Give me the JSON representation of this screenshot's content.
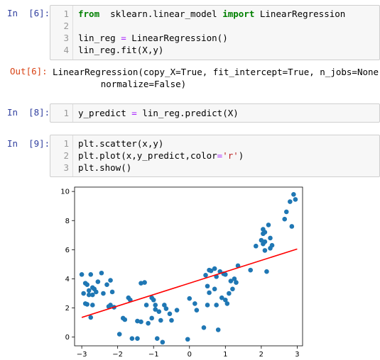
{
  "cells": [
    {
      "prompt": "In  [6]:",
      "lines": [
        {
          "n": "1",
          "parts": [
            [
              "kw",
              "from"
            ],
            [
              "",
              "  sklearn.linear_model "
            ],
            [
              "kw",
              "import"
            ],
            [
              "",
              " LinearRegression"
            ]
          ]
        },
        {
          "n": "2",
          "parts": []
        },
        {
          "n": "3",
          "parts": [
            [
              "",
              "lin_reg "
            ],
            [
              "op",
              "="
            ],
            [
              "",
              " LinearRegression()"
            ]
          ]
        },
        {
          "n": "4",
          "parts": [
            [
              "",
              "lin_reg.fit(X,y)"
            ]
          ]
        }
      ]
    },
    {
      "prompt": "In  [8]:",
      "lines": [
        {
          "n": "1",
          "parts": [
            [
              "",
              "y_predict "
            ],
            [
              "op",
              "="
            ],
            [
              "",
              " lin_reg.predict(X)"
            ]
          ]
        }
      ]
    },
    {
      "prompt": "In  [9]:",
      "lines": [
        {
          "n": "1",
          "parts": [
            [
              "",
              "plt.scatter(x,y)"
            ]
          ]
        },
        {
          "n": "2",
          "parts": [
            [
              "",
              "plt.plot(x,y_predict,color"
            ],
            [
              "op",
              "="
            ],
            [
              "str",
              "'r'"
            ],
            [
              "",
              ")"
            ]
          ]
        },
        {
          "n": "3",
          "parts": [
            [
              "",
              "plt.show()"
            ]
          ]
        }
      ]
    }
  ],
  "output6": {
    "prompt": "Out[6]:",
    "line1": "LinearRegression(copy_X=True, fit_intercept=True, n_jobs=None,",
    "line2": "         normalize=False)"
  },
  "chart_data": {
    "type": "scatter",
    "title": "",
    "xlabel": "",
    "ylabel": "",
    "xlim": [
      -3.2,
      3.15
    ],
    "ylim": [
      -0.6,
      10.3
    ],
    "xticks": [
      "−3",
      "−2",
      "−1",
      "0",
      "1",
      "2",
      "3"
    ],
    "yticks": [
      "0",
      "2",
      "4",
      "6",
      "8",
      "10"
    ],
    "grid": false,
    "point_color": "#1f77b4",
    "line_color": "#ff0000",
    "points": [
      [
        -3.0,
        4.3
      ],
      [
        -2.9,
        3.7
      ],
      [
        -2.95,
        3.0
      ],
      [
        -2.85,
        3.6
      ],
      [
        -2.8,
        3.2
      ],
      [
        -2.75,
        4.3
      ],
      [
        -2.7,
        3.4
      ],
      [
        -2.65,
        3.3
      ],
      [
        -2.6,
        3.1
      ],
      [
        -2.8,
        2.9
      ],
      [
        -2.7,
        2.9
      ],
      [
        -2.9,
        2.3
      ],
      [
        -2.85,
        2.25
      ],
      [
        -2.7,
        2.2
      ],
      [
        -2.75,
        1.35
      ],
      [
        -2.55,
        3.8
      ],
      [
        -2.45,
        4.4
      ],
      [
        -2.4,
        3.0
      ],
      [
        -2.3,
        3.6
      ],
      [
        -2.2,
        3.9
      ],
      [
        -2.15,
        3.1
      ],
      [
        -2.2,
        2.2
      ],
      [
        -2.25,
        2.1
      ],
      [
        -2.1,
        2.05
      ],
      [
        -1.95,
        0.2
      ],
      [
        -1.85,
        1.3
      ],
      [
        -1.8,
        1.2
      ],
      [
        -1.65,
        2.55
      ],
      [
        -1.7,
        2.7
      ],
      [
        -1.6,
        -0.1
      ],
      [
        -1.45,
        -0.1
      ],
      [
        -1.45,
        1.1
      ],
      [
        -1.35,
        1.05
      ],
      [
        -1.35,
        3.7
      ],
      [
        -1.25,
        3.75
      ],
      [
        -1.2,
        2.2
      ],
      [
        -1.15,
        0.95
      ],
      [
        -1.05,
        1.3
      ],
      [
        -1.05,
        2.7
      ],
      [
        -1.0,
        2.55
      ],
      [
        -0.95,
        2.2
      ],
      [
        -0.95,
        1.9
      ],
      [
        -0.9,
        -0.1
      ],
      [
        -0.85,
        1.75
      ],
      [
        -0.8,
        1.15
      ],
      [
        -0.75,
        -0.35
      ],
      [
        -0.7,
        2.2
      ],
      [
        -0.65,
        1.95
      ],
      [
        -0.55,
        1.6
      ],
      [
        -0.5,
        1.15
      ],
      [
        -0.35,
        1.85
      ],
      [
        -0.05,
        -0.15
      ],
      [
        0.0,
        2.65
      ],
      [
        0.15,
        2.3
      ],
      [
        0.2,
        1.85
      ],
      [
        0.4,
        0.65
      ],
      [
        0.45,
        4.25
      ],
      [
        0.5,
        3.5
      ],
      [
        0.5,
        2.2
      ],
      [
        0.55,
        4.6
      ],
      [
        0.55,
        3.05
      ],
      [
        0.6,
        4.55
      ],
      [
        0.7,
        4.7
      ],
      [
        0.7,
        3.3
      ],
      [
        0.75,
        2.2
      ],
      [
        0.75,
        4.15
      ],
      [
        0.8,
        0.5
      ],
      [
        0.85,
        4.5
      ],
      [
        0.9,
        2.7
      ],
      [
        0.95,
        4.35
      ],
      [
        1.0,
        4.3
      ],
      [
        1.0,
        2.55
      ],
      [
        1.05,
        2.3
      ],
      [
        1.1,
        3.0
      ],
      [
        1.15,
        3.85
      ],
      [
        1.2,
        3.3
      ],
      [
        1.25,
        4.0
      ],
      [
        1.3,
        3.75
      ],
      [
        1.35,
        4.9
      ],
      [
        1.7,
        4.6
      ],
      [
        1.85,
        6.25
      ],
      [
        2.0,
        6.65
      ],
      [
        2.05,
        7.4
      ],
      [
        2.05,
        7.1
      ],
      [
        2.05,
        6.4
      ],
      [
        2.1,
        5.95
      ],
      [
        2.1,
        6.55
      ],
      [
        2.1,
        7.2
      ],
      [
        2.15,
        4.5
      ],
      [
        2.2,
        7.7
      ],
      [
        2.25,
        6.8
      ],
      [
        2.25,
        6.1
      ],
      [
        2.3,
        6.3
      ],
      [
        2.65,
        8.1
      ],
      [
        2.7,
        8.6
      ],
      [
        2.8,
        9.3
      ],
      [
        2.85,
        7.6
      ],
      [
        2.9,
        9.8
      ],
      [
        2.95,
        9.45
      ]
    ],
    "fit_line": {
      "x": [
        -3.0,
        3.0
      ],
      "y": [
        1.35,
        6.05
      ]
    }
  }
}
